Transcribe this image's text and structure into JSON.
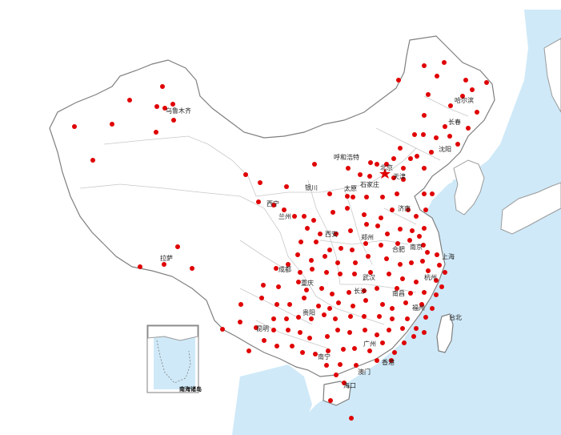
{
  "colors": {
    "sea": "#cfe9f8",
    "dot": "#e00000",
    "capital_star": "#e00000",
    "border": "#7f7f7f"
  },
  "map": {
    "labels": {
      "harbin": "哈尔滨",
      "urumqi": "乌鲁木齐",
      "changchun": "长春",
      "shenyang": "沈阳",
      "hohhot": "呼和浩特",
      "beijing": "北京",
      "tianjin": "天津",
      "yinchuan": "银川",
      "taiyuan": "太原",
      "shijiazhuang": "石家庄",
      "xining": "西宁",
      "jinan": "济南",
      "lanzhou": "兰州",
      "xian": "西安",
      "zhengzhou": "郑州",
      "hefei": "合肥",
      "nanjing": "南京",
      "shanghai": "上海",
      "lhasa": "拉萨",
      "chengdu": "成都",
      "wuhan": "武汉",
      "hangzhou": "杭州",
      "chongqing": "重庆",
      "changsha": "长沙",
      "nanchang": "南昌",
      "guiyang": "贵阳",
      "fuzhou": "福州",
      "taibei": "台北",
      "kunming": "昆明",
      "guangzhou": "广州",
      "nanning": "南宁",
      "hongkong": "香港",
      "macau": "澳门",
      "haikou": "海口"
    },
    "inset_title": "南海诸岛"
  }
}
